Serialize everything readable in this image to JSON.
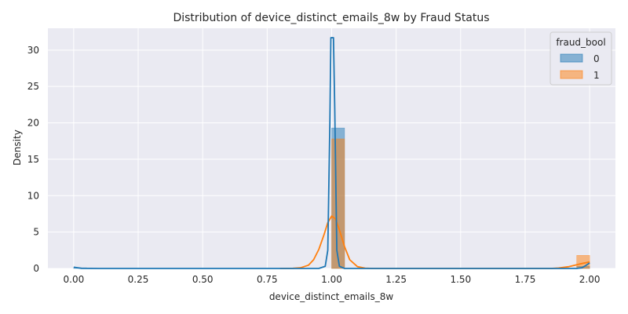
{
  "chart_data": {
    "type": "histogram",
    "title": "Distribution of device_distinct_emails_8w by Fraud Status",
    "xlabel": "device_distinct_emails_8w",
    "ylabel": "Density",
    "xlim": [
      -0.1,
      2.1
    ],
    "ylim": [
      0,
      33
    ],
    "xticks": [
      "0.00",
      "0.25",
      "0.50",
      "0.75",
      "1.00",
      "1.25",
      "1.50",
      "1.75",
      "2.00"
    ],
    "yticks": [
      "0",
      "5",
      "10",
      "15",
      "20",
      "25",
      "30"
    ],
    "grid": true,
    "legend": {
      "title": "fraud_bool",
      "position": "top-right"
    },
    "bin_width": 0.05,
    "series": [
      {
        "name": "0",
        "color": "#1f77b4",
        "bars": [
          {
            "x": [
              0.0,
              0.05
            ],
            "density": 0.1
          },
          {
            "x": [
              1.0,
              1.05
            ],
            "density": 19.3
          },
          {
            "x": [
              1.95,
              2.0
            ],
            "density": 0.3
          }
        ],
        "kde": [
          [
            0.0,
            0.18
          ],
          [
            0.03,
            0.02
          ],
          [
            0.1,
            0.0
          ],
          [
            0.95,
            0.0
          ],
          [
            0.975,
            0.3
          ],
          [
            0.985,
            2.5
          ],
          [
            0.993,
            20.0
          ],
          [
            0.997,
            31.7
          ],
          [
            1.007,
            31.7
          ],
          [
            1.012,
            22.0
          ],
          [
            1.02,
            2.5
          ],
          [
            1.03,
            0.3
          ],
          [
            1.05,
            0.0
          ],
          [
            1.95,
            0.0
          ],
          [
            1.97,
            0.1
          ],
          [
            1.985,
            0.4
          ],
          [
            2.0,
            0.75
          ]
        ]
      },
      {
        "name": "1",
        "color": "#ff7f0e",
        "bars": [
          {
            "x": [
              1.0,
              1.05
            ],
            "density": 17.8
          },
          {
            "x": [
              1.95,
              2.0
            ],
            "density": 1.8
          }
        ],
        "kde": [
          [
            0.8,
            0.0
          ],
          [
            0.85,
            0.02
          ],
          [
            0.88,
            0.1
          ],
          [
            0.91,
            0.45
          ],
          [
            0.93,
            1.2
          ],
          [
            0.95,
            2.6
          ],
          [
            0.97,
            4.6
          ],
          [
            0.985,
            6.3
          ],
          [
            1.0,
            7.2
          ],
          [
            1.015,
            6.8
          ],
          [
            1.03,
            5.3
          ],
          [
            1.05,
            3.0
          ],
          [
            1.07,
            1.2
          ],
          [
            1.1,
            0.25
          ],
          [
            1.13,
            0.04
          ],
          [
            1.16,
            0.0
          ],
          [
            1.85,
            0.0
          ],
          [
            1.88,
            0.06
          ],
          [
            1.92,
            0.25
          ],
          [
            1.96,
            0.6
          ],
          [
            2.0,
            0.9
          ]
        ]
      }
    ]
  }
}
